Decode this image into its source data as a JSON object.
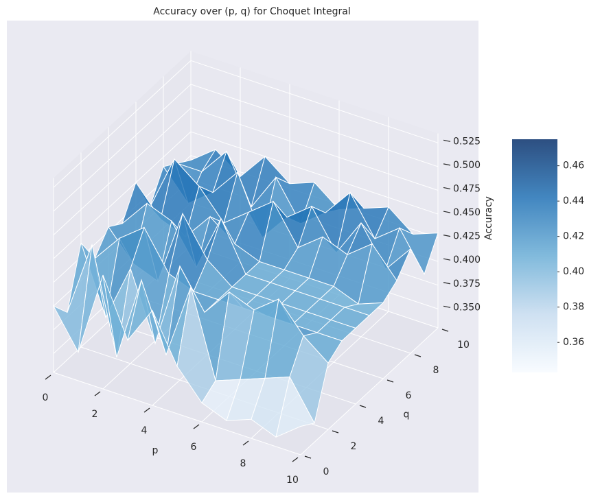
{
  "chart_data": {
    "type": "surface",
    "title": "Accuracy over (p, q) for Choquet Integral",
    "x_label": "p",
    "y_label": "q",
    "z_label": "Accuracy",
    "x": [
      0,
      1,
      2,
      3,
      4,
      5,
      6,
      7,
      8,
      9,
      10
    ],
    "y": [
      0,
      1,
      2,
      3,
      4,
      5,
      6,
      7,
      8,
      9,
      10
    ],
    "z": [
      [
        0.4,
        0.38,
        0.44,
        0.41,
        0.43,
        0.42,
        0.45,
        0.41,
        0.44,
        0.43,
        0.42
      ],
      [
        0.36,
        0.46,
        0.37,
        0.44,
        0.4,
        0.45,
        0.42,
        0.47,
        0.41,
        0.43,
        0.44
      ],
      [
        0.45,
        0.35,
        0.43,
        0.46,
        0.39,
        0.44,
        0.41,
        0.45,
        0.43,
        0.46,
        0.42
      ],
      [
        0.39,
        0.44,
        0.36,
        0.42,
        0.47,
        0.4,
        0.44,
        0.42,
        0.46,
        0.41,
        0.45
      ],
      [
        0.43,
        0.37,
        0.45,
        0.41,
        0.43,
        0.46,
        0.42,
        0.44,
        0.4,
        0.45,
        0.43
      ],
      [
        0.38,
        0.45,
        0.41,
        0.41,
        0.41,
        0.41,
        0.41,
        0.46,
        0.43,
        0.41,
        0.44
      ],
      [
        0.35,
        0.36,
        0.44,
        0.41,
        0.41,
        0.41,
        0.41,
        0.42,
        0.45,
        0.43,
        0.42
      ],
      [
        0.34,
        0.37,
        0.43,
        0.41,
        0.41,
        0.41,
        0.41,
        0.44,
        0.41,
        0.46,
        0.43
      ],
      [
        0.35,
        0.38,
        0.45,
        0.41,
        0.41,
        0.41,
        0.41,
        0.43,
        0.45,
        0.42,
        0.44
      ],
      [
        0.34,
        0.39,
        0.42,
        0.41,
        0.41,
        0.41,
        0.4,
        0.45,
        0.41,
        0.44,
        0.42
      ],
      [
        0.36,
        0.35,
        0.4,
        0.41,
        0.41,
        0.41,
        0.41,
        0.42,
        0.44,
        0.4,
        0.43
      ]
    ],
    "xlim": [
      0,
      10
    ],
    "xticks": [
      0,
      2,
      4,
      6,
      8,
      10
    ],
    "ylim": [
      0,
      10
    ],
    "yticks": [
      0,
      2,
      4,
      6,
      8,
      10
    ],
    "zlim": [
      0.33,
      0.535
    ],
    "zticks": [
      {
        "value": 0.35,
        "label": "0.350"
      },
      0.375,
      {
        "value": 0.4,
        "label": "0.400"
      },
      0.425,
      {
        "value": 0.45,
        "label": "0.450"
      },
      0.475,
      {
        "value": 0.5,
        "label": "0.500"
      },
      0.525
    ],
    "clim": [
      0.343,
      0.475
    ],
    "cticks": [
      0.36,
      0.38,
      {
        "value": 0.4,
        "label": "0.40"
      },
      0.42,
      0.44,
      0.46
    ],
    "colormap": [
      "#f7fbff",
      "#c6dbef",
      "#6baed6",
      "#2171b5",
      "#08306b"
    ],
    "grid": true
  }
}
